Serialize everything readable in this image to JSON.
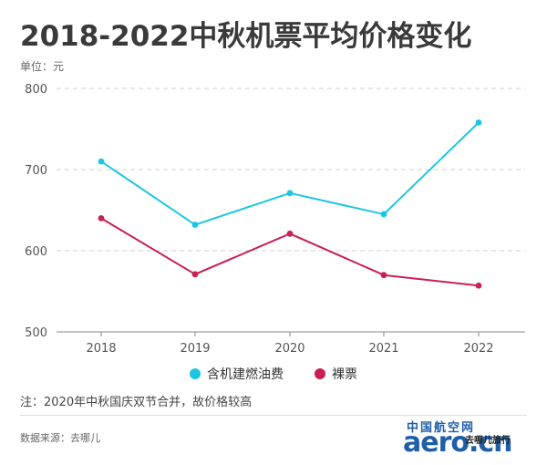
{
  "header": {
    "title": "2018-2022中秋机票平均价格变化",
    "unit": "单位：元"
  },
  "chart_data": {
    "type": "line",
    "title": "2018-2022中秋机票平均价格变化",
    "x": [
      "2018",
      "2019",
      "2020",
      "2021",
      "2022"
    ],
    "yticks": [
      500,
      600,
      700,
      800
    ],
    "ylim": [
      500,
      800
    ],
    "grid": "horizontal dashed",
    "legend_position": "bottom",
    "series": [
      {
        "name": "含机建燃油费",
        "color": "#1cc6e0",
        "values": [
          710,
          632,
          671,
          645,
          758
        ]
      },
      {
        "name": "裸票",
        "color": "#c91f53",
        "values": [
          640,
          571,
          621,
          570,
          557
        ]
      }
    ]
  },
  "footer": {
    "note": "注：2020年中秋国庆双节合并，故价格较高",
    "source": "数据来源：去哪儿"
  },
  "watermark": {
    "top": "中国航空网",
    "main": "aero.cn",
    "sub": "去哪儿旅行"
  }
}
